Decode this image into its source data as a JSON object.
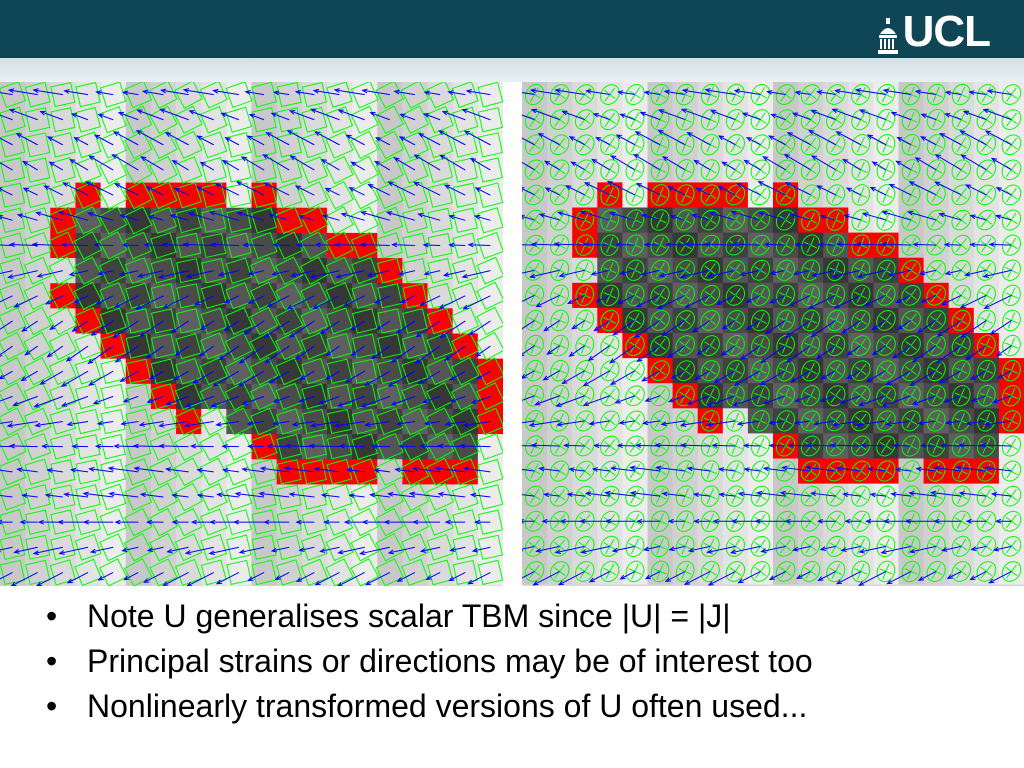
{
  "header": {
    "logo_text": "UCL",
    "colors": {
      "bar": "#0f4656",
      "stripe": "#dbe6ea"
    }
  },
  "figures": {
    "left_panel": {
      "icon": "deformation-grid-image",
      "cell_shape": "square"
    },
    "right_panel": {
      "icon": "strain-ellipse-image",
      "cell_shape": "ellipse"
    },
    "colors": {
      "boundary": "#ff0000",
      "overlay": "#00ff00",
      "vector": "#0000ff"
    }
  },
  "bullets": [
    "Note U generalises scalar TBM since |U| = |J|",
    "Principal strains or directions may be of interest too",
    "Nonlinearly transformed versions of U often used..."
  ]
}
